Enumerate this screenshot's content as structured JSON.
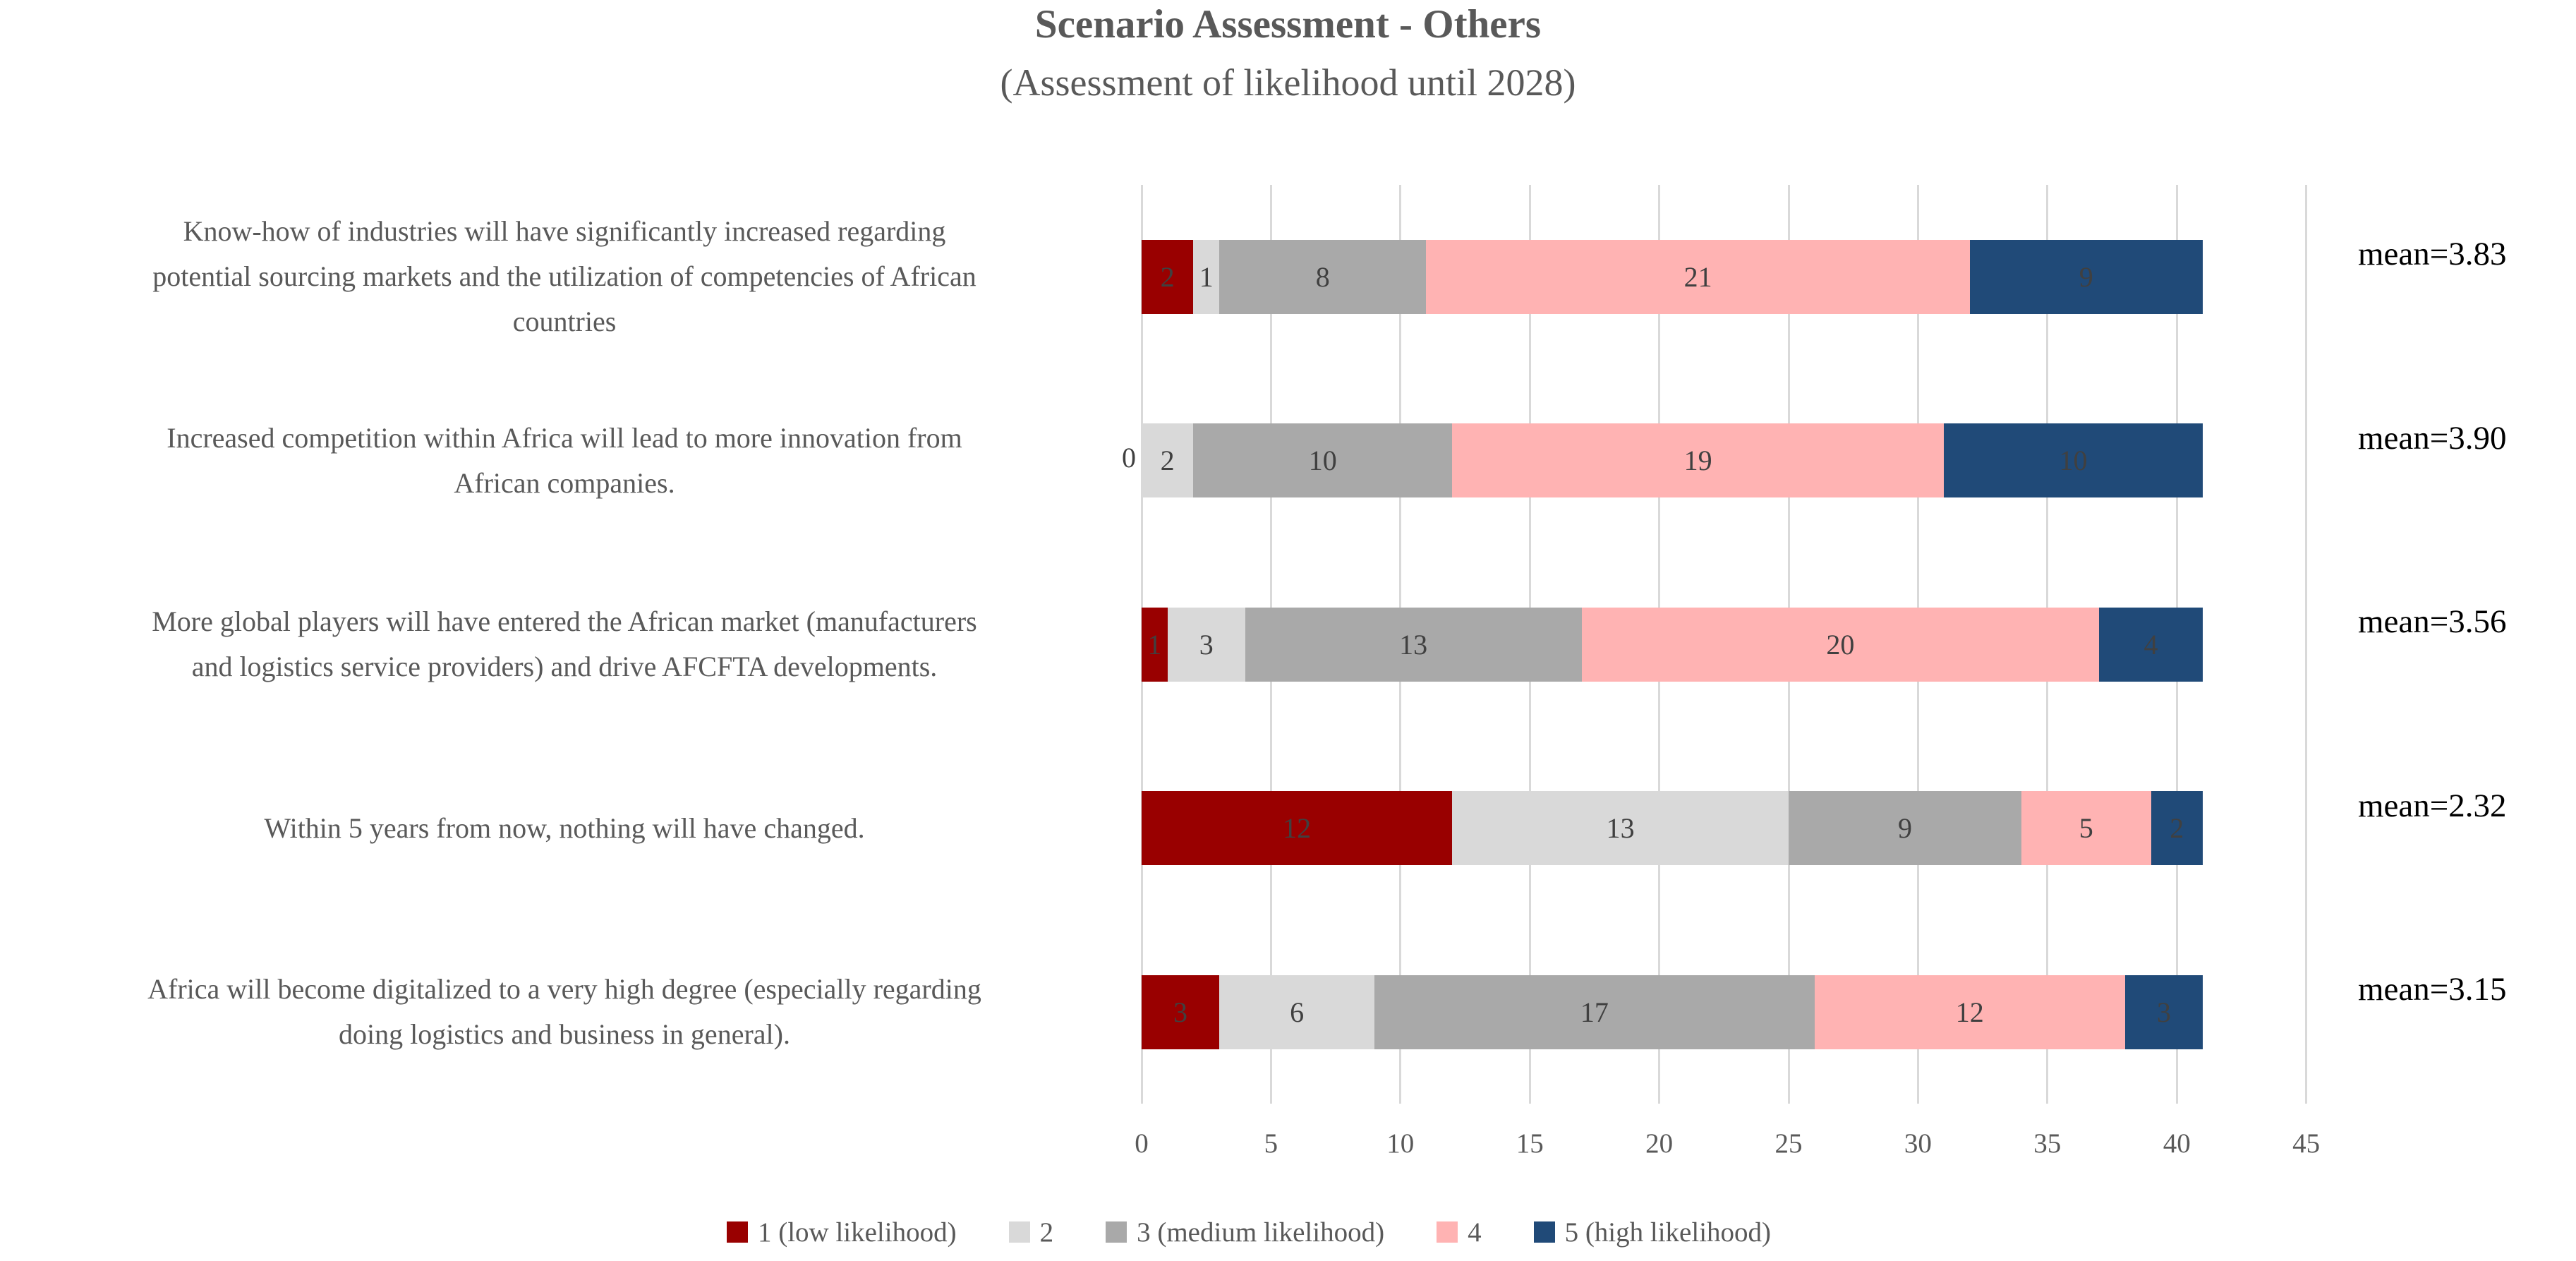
{
  "title": {
    "line1": "Scenario Assessment - Others",
    "line2": "(Assessment of likelihood until 2028)"
  },
  "chart_data": {
    "type": "bar",
    "orientation": "horizontal",
    "stacked": true,
    "title": "Scenario Assessment - Others",
    "subtitle": "(Assessment of likelihood until 2028)",
    "categories": [
      "Know-how of industries will have significantly increased regarding potential sourcing markets and the utilization of competencies of African countries",
      "Increased competition within Africa will lead to more innovation from African companies.",
      "More global players will have entered the African market (manufacturers and logistics service providers) and drive AFCFTA developments.",
      "Within 5 years from now, nothing will have changed.",
      "Africa will become digitalized to a very high degree (especially regarding doing logistics and business in general)."
    ],
    "category_lines": [
      "Know-how of industries will have significantly increased regarding\npotential sourcing markets and the utilization of competencies of African\ncountries",
      "Increased competition within Africa will lead to more innovation from\nAfrican companies.",
      "More global players will have entered the African market (manufacturers\nand logistics service providers) and drive AFCFTA developments.",
      "Within 5 years from now, nothing will have changed.",
      "Africa will become digitalized to a very high degree (especially regarding\ndoing logistics and business in general)."
    ],
    "series": [
      {
        "name": "1 (low likelihood)",
        "color": "#990000",
        "values": [
          2,
          0,
          1,
          12,
          3
        ]
      },
      {
        "name": "2",
        "color": "#D9D9D9",
        "values": [
          1,
          2,
          3,
          13,
          6
        ]
      },
      {
        "name": "3 (medium likelihood)",
        "color": "#A9A9A9",
        "values": [
          8,
          10,
          13,
          9,
          17
        ]
      },
      {
        "name": "4",
        "color": "#FFB3B3",
        "values": [
          21,
          19,
          20,
          5,
          12
        ]
      },
      {
        "name": "5 (high likelihood)",
        "color": "#204A78",
        "values": [
          9,
          10,
          4,
          2,
          3
        ]
      }
    ],
    "means": [
      "mean=3.83",
      "mean=3.90",
      "mean=3.56",
      "mean=2.32",
      "mean=3.15"
    ],
    "x_ticks": [
      0,
      5,
      10,
      15,
      20,
      25,
      30,
      35,
      40,
      45
    ],
    "xlim": [
      0,
      45
    ],
    "grid": true,
    "legend_position": "bottom"
  },
  "colors": {
    "grid": "#D9D9D9",
    "axis_text": "#595959",
    "category_text": "#595959",
    "bar_label_text": "#404040",
    "mean_text": "#000000",
    "background": "#FFFFFF"
  }
}
